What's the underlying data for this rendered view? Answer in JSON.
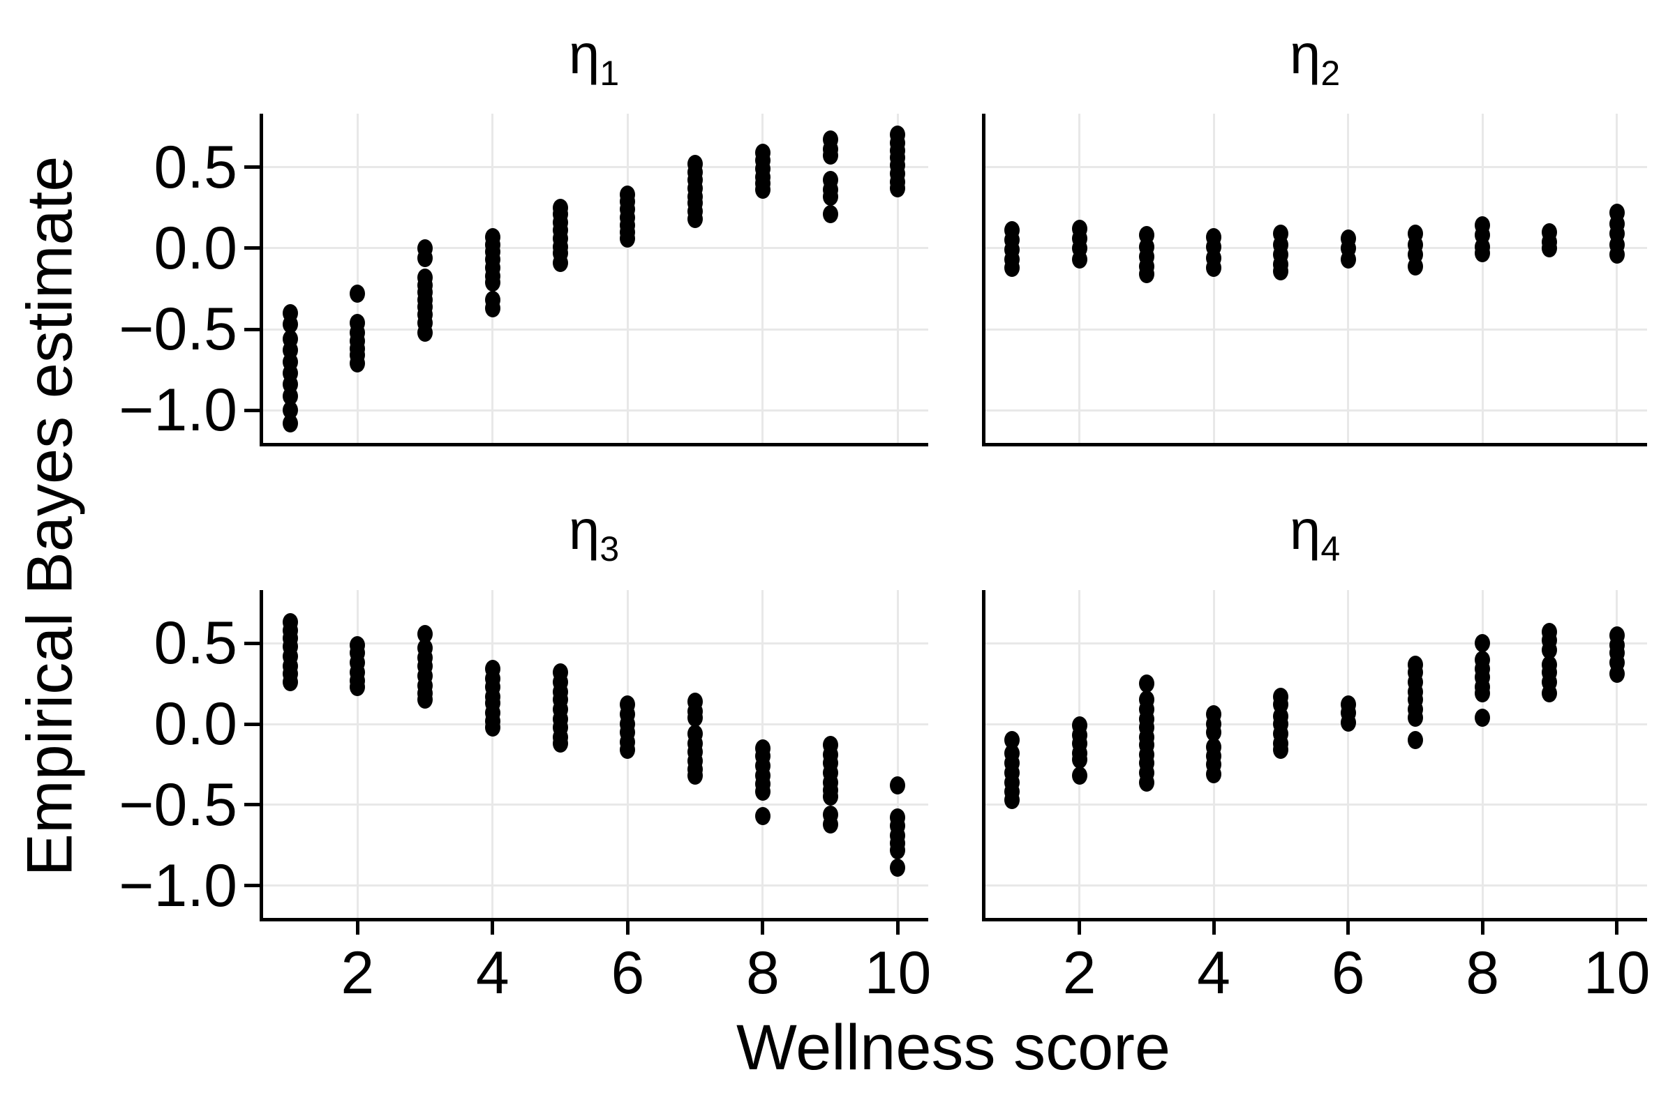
{
  "chart_data": {
    "type": "scatter",
    "subtype": "strip-plot-faceted",
    "xlabel": "Wellness score",
    "ylabel": "Empirical Bayes estimate",
    "xlim": [
      0.55,
      10.45
    ],
    "ylim": [
      -1.2,
      0.83
    ],
    "grid": true,
    "legend": false,
    "x_ticks": {
      "values": [
        2,
        4,
        6,
        8,
        10
      ],
      "labels": [
        "2",
        "4",
        "6",
        "8",
        "10"
      ]
    },
    "y_ticks": {
      "values": [
        0.5,
        0.0,
        -0.5,
        -1.0
      ],
      "labels": [
        "0.5",
        "0.0",
        "−0.5",
        "−1.0"
      ]
    },
    "style": {
      "background": "#ffffff",
      "point_color": "#000000",
      "grid_color": "#e8e8e8",
      "axis_color": "#000000"
    },
    "facets": [
      {
        "id": "eta1",
        "title": {
          "symbol": "η",
          "sub": "1"
        },
        "columns": [
          {
            "x": 1,
            "y": [
              -0.4,
              -0.47,
              -0.56,
              -0.63,
              -0.7,
              -0.77,
              -0.84,
              -0.91,
              -1.0,
              -1.08
            ]
          },
          {
            "x": 2,
            "y": [
              -0.28,
              -0.46,
              -0.52,
              -0.57,
              -0.62,
              -0.66,
              -0.71
            ]
          },
          {
            "x": 3,
            "y": [
              0.0,
              -0.06,
              -0.18,
              -0.23,
              -0.27,
              -0.32,
              -0.36,
              -0.41,
              -0.46,
              -0.52
            ]
          },
          {
            "x": 4,
            "y": [
              0.07,
              0.02,
              -0.02,
              -0.07,
              -0.12,
              -0.17,
              -0.21,
              -0.32,
              -0.37
            ]
          },
          {
            "x": 5,
            "y": [
              0.25,
              0.21,
              0.16,
              0.11,
              0.06,
              0.01,
              -0.03,
              -0.09
            ]
          },
          {
            "x": 6,
            "y": [
              0.33,
              0.29,
              0.24,
              0.19,
              0.14,
              0.1,
              0.06
            ]
          },
          {
            "x": 7,
            "y": [
              0.52,
              0.47,
              0.42,
              0.37,
              0.32,
              0.28,
              0.23,
              0.18
            ]
          },
          {
            "x": 8,
            "y": [
              0.59,
              0.54,
              0.49,
              0.44,
              0.4,
              0.36
            ]
          },
          {
            "x": 9,
            "y": [
              0.67,
              0.61,
              0.57,
              0.42,
              0.36,
              0.32,
              0.21
            ]
          },
          {
            "x": 10,
            "y": [
              0.7,
              0.65,
              0.6,
              0.56,
              0.51,
              0.46,
              0.41,
              0.37
            ]
          }
        ]
      },
      {
        "id": "eta2",
        "title": {
          "symbol": "η",
          "sub": "2"
        },
        "columns": [
          {
            "x": 1,
            "y": [
              0.11,
              0.05,
              -0.01,
              -0.07,
              -0.12
            ]
          },
          {
            "x": 2,
            "y": [
              0.12,
              0.06,
              0.0,
              -0.07
            ]
          },
          {
            "x": 3,
            "y": [
              0.08,
              0.01,
              -0.05,
              -0.11,
              -0.16
            ]
          },
          {
            "x": 4,
            "y": [
              0.07,
              0.01,
              -0.06,
              -0.12
            ]
          },
          {
            "x": 5,
            "y": [
              0.09,
              0.02,
              -0.04,
              -0.1,
              -0.14
            ]
          },
          {
            "x": 6,
            "y": [
              0.06,
              0.0,
              -0.07
            ]
          },
          {
            "x": 7,
            "y": [
              0.09,
              0.02,
              -0.04,
              -0.11
            ]
          },
          {
            "x": 8,
            "y": [
              0.14,
              0.08,
              0.01,
              -0.03
            ]
          },
          {
            "x": 9,
            "y": [
              0.1,
              0.04,
              0.0
            ]
          },
          {
            "x": 10,
            "y": [
              0.22,
              0.15,
              0.09,
              0.02,
              -0.04
            ]
          }
        ]
      },
      {
        "id": "eta3",
        "title": {
          "symbol": "η",
          "sub": "3"
        },
        "columns": [
          {
            "x": 1,
            "y": [
              0.63,
              0.58,
              0.53,
              0.48,
              0.42,
              0.36,
              0.31,
              0.26
            ]
          },
          {
            "x": 2,
            "y": [
              0.49,
              0.44,
              0.38,
              0.32,
              0.27,
              0.23
            ]
          },
          {
            "x": 3,
            "y": [
              0.56,
              0.47,
              0.41,
              0.36,
              0.3,
              0.24,
              0.19,
              0.15
            ]
          },
          {
            "x": 4,
            "y": [
              0.34,
              0.28,
              0.23,
              0.17,
              0.13,
              0.07,
              0.02,
              -0.02
            ]
          },
          {
            "x": 5,
            "y": [
              0.32,
              0.26,
              0.2,
              0.15,
              0.09,
              0.03,
              -0.02,
              -0.08,
              -0.12
            ]
          },
          {
            "x": 6,
            "y": [
              0.12,
              0.06,
              0.0,
              -0.05,
              -0.11,
              -0.16
            ]
          },
          {
            "x": 7,
            "y": [
              0.14,
              0.08,
              0.04,
              -0.06,
              -0.12,
              -0.17,
              -0.23,
              -0.28,
              -0.32
            ]
          },
          {
            "x": 8,
            "y": [
              -0.15,
              -0.2,
              -0.26,
              -0.32,
              -0.37,
              -0.42,
              -0.57
            ]
          },
          {
            "x": 9,
            "y": [
              -0.13,
              -0.19,
              -0.24,
              -0.3,
              -0.36,
              -0.41,
              -0.45,
              -0.56,
              -0.62
            ]
          },
          {
            "x": 10,
            "y": [
              -0.38,
              -0.58,
              -0.63,
              -0.69,
              -0.74,
              -0.78,
              -0.89
            ]
          }
        ]
      },
      {
        "id": "eta4",
        "title": {
          "symbol": "η",
          "sub": "4"
        },
        "columns": [
          {
            "x": 1,
            "y": [
              -0.1,
              -0.18,
              -0.24,
              -0.3,
              -0.36,
              -0.42,
              -0.47
            ]
          },
          {
            "x": 2,
            "y": [
              -0.01,
              -0.07,
              -0.12,
              -0.18,
              -0.22,
              -0.32
            ]
          },
          {
            "x": 3,
            "y": [
              0.25,
              0.15,
              0.09,
              0.03,
              -0.02,
              -0.08,
              -0.13,
              -0.19,
              -0.24,
              -0.3,
              -0.36
            ]
          },
          {
            "x": 4,
            "y": [
              0.06,
              0.0,
              -0.05,
              -0.14,
              -0.2,
              -0.25,
              -0.31
            ]
          },
          {
            "x": 5,
            "y": [
              0.17,
              0.12,
              0.05,
              0.0,
              -0.06,
              -0.12,
              -0.16
            ]
          },
          {
            "x": 6,
            "y": [
              0.12,
              0.07,
              0.01
            ]
          },
          {
            "x": 7,
            "y": [
              0.37,
              0.32,
              0.26,
              0.2,
              0.15,
              0.09,
              0.04,
              -0.1
            ]
          },
          {
            "x": 8,
            "y": [
              0.5,
              0.4,
              0.34,
              0.29,
              0.23,
              0.19,
              0.04
            ]
          },
          {
            "x": 9,
            "y": [
              0.57,
              0.52,
              0.46,
              0.37,
              0.32,
              0.26,
              0.19
            ]
          },
          {
            "x": 10,
            "y": [
              0.55,
              0.49,
              0.44,
              0.38,
              0.31
            ]
          }
        ]
      }
    ]
  }
}
